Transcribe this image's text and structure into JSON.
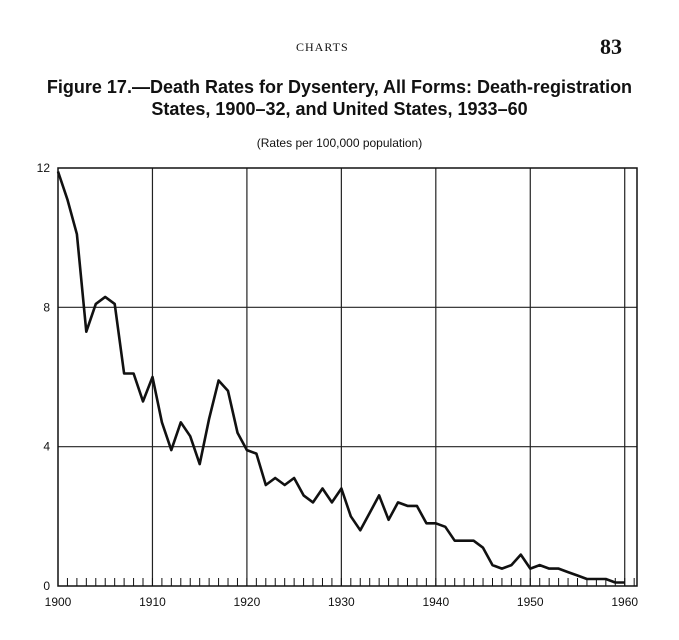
{
  "page": {
    "running_head": "CHARTS",
    "page_number": "83"
  },
  "chart_data": {
    "type": "line",
    "title": "Figure 17.—Death Rates for Dysentery, All Forms: Death-registration States, 1900–32, and United States, 1933–60",
    "title_lines": [
      "Figure 17.—Death Rates for Dysentery, All Forms: Death-registration",
      "States, 1900–32, and United States, 1933–60"
    ],
    "subtitle": "(Rates per 100,000 population)",
    "xlabel": "",
    "ylabel": "",
    "xlim": [
      1900,
      1960
    ],
    "ylim": [
      0,
      12
    ],
    "x_ticks": [
      1900,
      1910,
      1920,
      1930,
      1940,
      1950,
      1960
    ],
    "x_tick_labels": [
      "1900",
      "1910",
      "1920",
      "1930",
      "1940",
      "1950",
      "1960"
    ],
    "y_ticks": [
      0,
      4,
      8,
      12
    ],
    "y_tick_labels": [
      "0",
      "4",
      "8",
      "12"
    ],
    "grid": true,
    "legend": "none",
    "line_color": "#111111",
    "series": [
      {
        "x": [
          1900,
          1901,
          1902,
          1903,
          1904,
          1905,
          1906,
          1907,
          1908,
          1909,
          1910,
          1911,
          1912,
          1913,
          1914,
          1915,
          1916,
          1917,
          1918,
          1919,
          1920,
          1921,
          1922,
          1923,
          1924,
          1925,
          1926,
          1927,
          1928,
          1929,
          1930,
          1931,
          1932,
          1933,
          1934,
          1935,
          1936,
          1937,
          1938,
          1939,
          1940,
          1941,
          1942,
          1943,
          1944,
          1945,
          1946,
          1947,
          1948,
          1949,
          1950,
          1951,
          1952,
          1953,
          1954,
          1955,
          1956,
          1957,
          1958,
          1959,
          1960
        ],
        "values": [
          11.9,
          11.1,
          10.1,
          7.3,
          8.1,
          8.3,
          8.1,
          6.1,
          6.1,
          5.3,
          6.0,
          4.7,
          3.9,
          4.7,
          4.3,
          3.5,
          4.8,
          5.9,
          5.6,
          4.4,
          3.9,
          3.8,
          2.9,
          3.1,
          2.9,
          3.1,
          2.6,
          2.4,
          2.8,
          2.4,
          2.8,
          2.0,
          1.6,
          2.1,
          2.6,
          1.9,
          2.4,
          2.3,
          2.3,
          1.8,
          1.8,
          1.7,
          1.3,
          1.3,
          1.3,
          1.1,
          0.6,
          0.5,
          0.6,
          0.9,
          0.5,
          0.6,
          0.5,
          0.5,
          0.4,
          0.3,
          0.2,
          0.2,
          0.2,
          0.1,
          0.1
        ]
      }
    ]
  }
}
